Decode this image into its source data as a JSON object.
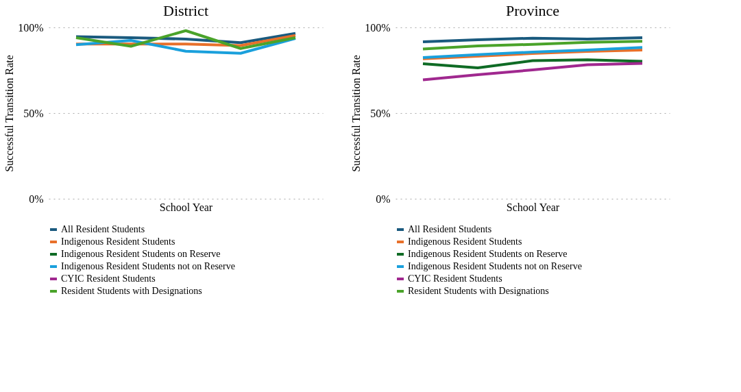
{
  "chart_data": [
    {
      "type": "line",
      "title": "District",
      "xlabel": "School Year",
      "ylabel": "Successful Transition Rate",
      "categories": [
        null,
        null,
        null,
        null,
        null
      ],
      "ylim": [
        0,
        100
      ],
      "yticks": [
        {
          "value": 0,
          "label": "0%"
        },
        {
          "value": 50,
          "label": "50%"
        },
        {
          "value": 100,
          "label": "100%"
        }
      ],
      "grid": "y",
      "legend": "bottom",
      "tick_labels": "y",
      "marker": "none",
      "line_style": "solid",
      "series": [
        {
          "name": "All Resident Students",
          "color": "#1a5a7e",
          "values": [
            94.6,
            94.0,
            93.2,
            91.1,
            96.5
          ]
        },
        {
          "name": "Indigenous Resident Students",
          "color": "#e8702a",
          "values": [
            90.3,
            90.3,
            90.3,
            89.4,
            95.3
          ]
        },
        {
          "name": "Indigenous Resident Students on Reserve",
          "color": "#0f6b25",
          "values": [
            null,
            null,
            null,
            null,
            null
          ]
        },
        {
          "name": "Indigenous Resident Students not on Reserve",
          "color": "#1aa0dc",
          "values": [
            89.9,
            92.4,
            86.1,
            84.9,
            93.6
          ]
        },
        {
          "name": "CYIC Resident Students",
          "color": "#a0288f",
          "values": [
            null,
            null,
            null,
            null,
            null
          ]
        },
        {
          "name": "Resident Students with Designations",
          "color": "#4aa32a",
          "values": [
            94.0,
            89.0,
            98.1,
            87.7,
            94.0
          ]
        }
      ]
    },
    {
      "type": "line",
      "title": "Province",
      "xlabel": "School Year",
      "ylabel": "Successful Transition Rate",
      "categories": [
        null,
        null,
        null,
        null,
        null
      ],
      "ylim": [
        0,
        100
      ],
      "yticks": [
        {
          "value": 0,
          "label": "0%"
        },
        {
          "value": 50,
          "label": "50%"
        },
        {
          "value": 100,
          "label": "100%"
        }
      ],
      "grid": "y",
      "legend": "bottom",
      "tick_labels": "y",
      "marker": "none",
      "line_style": "solid",
      "series": [
        {
          "name": "All Resident Students",
          "color": "#1a5a7e",
          "values": [
            91.6,
            92.8,
            93.7,
            93.2,
            94.0
          ]
        },
        {
          "name": "Indigenous Resident Students",
          "color": "#e8702a",
          "values": [
            81.7,
            83.2,
            84.8,
            86.0,
            86.8
          ]
        },
        {
          "name": "Indigenous Resident Students on Reserve",
          "color": "#0f6b25",
          "values": [
            78.8,
            76.4,
            80.6,
            81.1,
            80.2
          ]
        },
        {
          "name": "Indigenous Resident Students not on Reserve",
          "color": "#1aa0dc",
          "values": [
            82.4,
            84.1,
            85.6,
            86.8,
            88.3
          ]
        },
        {
          "name": "CYIC Resident Students",
          "color": "#a0288f",
          "values": [
            69.4,
            72.4,
            75.2,
            78.2,
            79.0
          ]
        },
        {
          "name": "Resident Students with Designations",
          "color": "#4aa32a",
          "values": [
            87.4,
            89.2,
            90.1,
            91.3,
            91.9
          ]
        }
      ]
    }
  ]
}
